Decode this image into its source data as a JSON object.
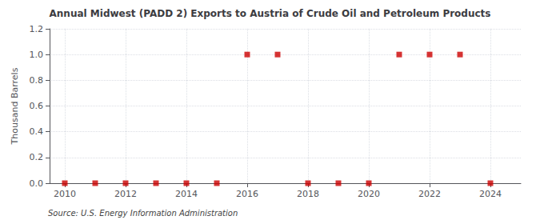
{
  "chart_data": {
    "type": "scatter",
    "title": "Annual Midwest (PADD 2) Exports to Austria of Crude Oil and Petroleum Products",
    "ylabel": "Thousand Barrels",
    "annotations": [
      "Source: U.S. Energy Information Administration"
    ],
    "x": [
      2010,
      2011,
      2012,
      2013,
      2014,
      2015,
      2016,
      2017,
      2018,
      2019,
      2020,
      2021,
      2022,
      2023,
      2024
    ],
    "values": [
      0,
      0,
      0,
      0,
      0,
      0,
      1,
      1,
      0,
      0,
      0,
      1,
      1,
      1,
      0
    ],
    "color": "#cc0000",
    "marker": "square",
    "xlim": [
      2009.5,
      2025.0
    ],
    "ylim": [
      0.0,
      1.2
    ],
    "xticks": [
      2010,
      2012,
      2014,
      2016,
      2018,
      2020,
      2022,
      2024
    ],
    "yticks": [
      {
        "value": 0.0,
        "label": "0.0"
      },
      0.2,
      0.4,
      0.6,
      0.8,
      {
        "value": 1.0,
        "label": "1.0"
      },
      1.2
    ],
    "grid": true
  }
}
